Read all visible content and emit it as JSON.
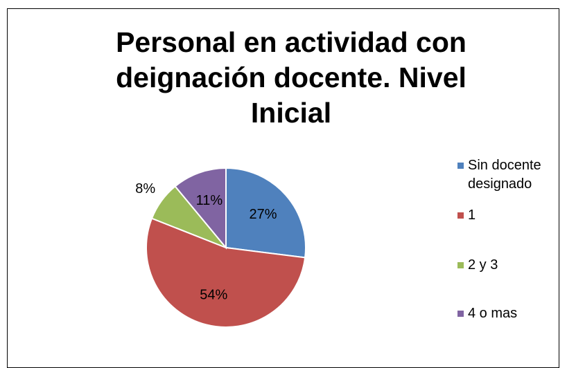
{
  "chart_data": {
    "type": "pie",
    "title": "Personal en actividad con deignación docente. Nivel Inicial",
    "categories": [
      "Sin docente designado",
      "1",
      "2 y 3",
      "4 o mas"
    ],
    "values": [
      27,
      54,
      8,
      11
    ],
    "value_labels": [
      "27%",
      "54%",
      "8%",
      "11%"
    ],
    "colors": [
      "#4f81bd",
      "#c0504d",
      "#9bbb59",
      "#8064a2"
    ],
    "legend": "right"
  }
}
